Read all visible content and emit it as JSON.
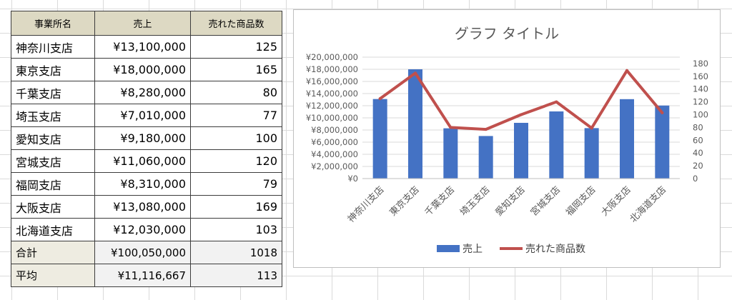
{
  "table": {
    "headers": [
      "事業所名",
      "売上",
      "売れた商品数"
    ],
    "rows": [
      {
        "name": "神奈川支店",
        "sales": "¥13,100,000",
        "count": "125"
      },
      {
        "name": "東京支店",
        "sales": "¥18,000,000",
        "count": "165"
      },
      {
        "name": "千葉支店",
        "sales": "¥8,280,000",
        "count": "80"
      },
      {
        "name": "埼玉支店",
        "sales": "¥7,010,000",
        "count": "77"
      },
      {
        "name": "愛知支店",
        "sales": "¥9,180,000",
        "count": "100"
      },
      {
        "name": "宮城支店",
        "sales": "¥11,060,000",
        "count": "120"
      },
      {
        "name": "福岡支店",
        "sales": "¥8,310,000",
        "count": "79"
      },
      {
        "name": "大阪支店",
        "sales": "¥13,080,000",
        "count": "169"
      },
      {
        "name": "北海道支店",
        "sales": "¥12,030,000",
        "count": "103"
      }
    ],
    "summary": [
      {
        "name": "合計",
        "sales": "¥100,050,000",
        "count": "1018"
      },
      {
        "name": "平均",
        "sales": "¥11,116,667",
        "count": "113"
      }
    ],
    "colors": {
      "header_bg": "#ddd9c3",
      "summary_label_bg": "#eeece1",
      "summary_value_bg": "#f2f2f2"
    }
  },
  "chart_data": {
    "type": "bar",
    "title": "グラフ タイトル",
    "categories": [
      "神奈川支店",
      "東京支店",
      "千葉支店",
      "埼玉支店",
      "愛知支店",
      "宮城支店",
      "福岡支店",
      "大阪支店",
      "北海道支店"
    ],
    "series": [
      {
        "name": "売上",
        "type": "bar",
        "axis": "left",
        "color": "#4472c4",
        "values": [
          13100000,
          18000000,
          8280000,
          7010000,
          9180000,
          11060000,
          8310000,
          13080000,
          12030000
        ]
      },
      {
        "name": "売れた商品数",
        "type": "line",
        "axis": "right",
        "color": "#c0504d",
        "values": [
          125,
          165,
          80,
          77,
          100,
          120,
          79,
          169,
          103
        ]
      }
    ],
    "left_axis": {
      "ylim": [
        0,
        20000000
      ],
      "ticks": [
        "¥0",
        "¥2,000,000",
        "¥4,000,000",
        "¥6,000,000",
        "¥8,000,000",
        "¥10,000,000",
        "¥12,000,000",
        "¥14,000,000",
        "¥16,000,000",
        "¥18,000,000",
        "¥20,000,000"
      ]
    },
    "right_axis": {
      "ylim": [
        0,
        180
      ],
      "ticks": [
        "0",
        "20",
        "40",
        "60",
        "80",
        "100",
        "120",
        "140",
        "160",
        "180"
      ]
    },
    "grid": true,
    "legend": "bottom",
    "xlabel": "",
    "ylabel": ""
  }
}
